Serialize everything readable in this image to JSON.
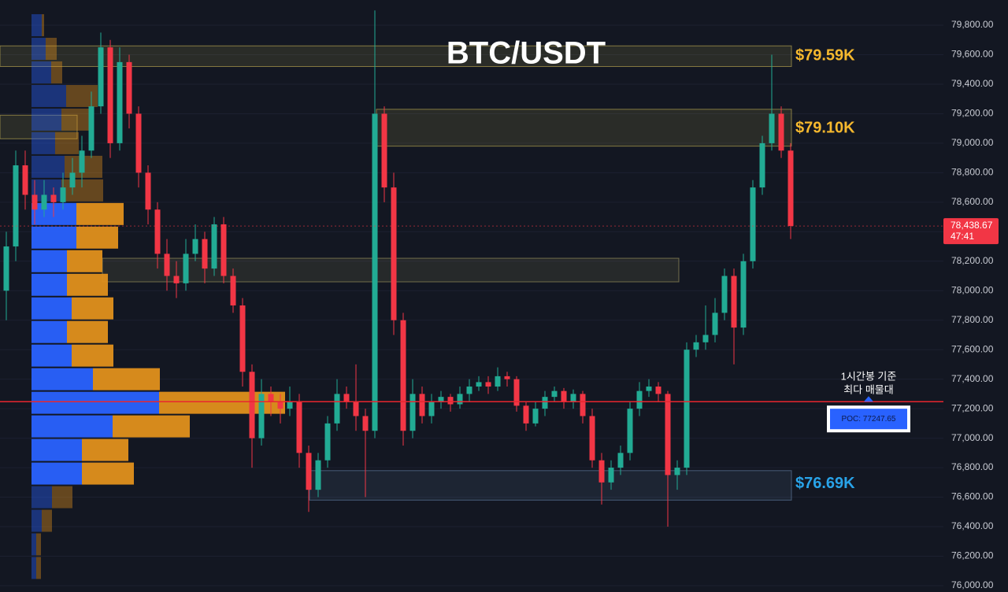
{
  "chart_data": {
    "type": "candlestick",
    "title": "BTC/USDT",
    "up_color": "#22ab94",
    "down_color": "#f23645",
    "ylim": [
      75957,
      79971
    ],
    "yticks": [
      {
        "value": 79800,
        "label": "79,800.00"
      },
      {
        "value": 79600,
        "label": "79,600.00"
      },
      {
        "value": 79400,
        "label": "79,400.00"
      },
      {
        "value": 79200,
        "label": "79,200.00"
      },
      {
        "value": 79000,
        "label": "79,000.00"
      },
      {
        "value": 78800,
        "label": "78,800.00"
      },
      {
        "value": 78600,
        "label": "78,600.00"
      },
      {
        "value": 78400,
        "label": "78,400.00"
      },
      {
        "value": 78200,
        "label": "78,200.00"
      },
      {
        "value": 78000,
        "label": "78,000.00"
      },
      {
        "value": 77800,
        "label": "77,800.00"
      },
      {
        "value": 77600,
        "label": "77,600.00"
      },
      {
        "value": 77400,
        "label": "77,400.00"
      },
      {
        "value": 77200,
        "label": "77,200.00"
      },
      {
        "value": 77000,
        "label": "77,000.00"
      },
      {
        "value": 76800,
        "label": "76,800.00"
      },
      {
        "value": 76600,
        "label": "76,600.00"
      },
      {
        "value": 76400,
        "label": "76,400.00"
      },
      {
        "value": 76200,
        "label": "76,200.00"
      },
      {
        "value": 76000,
        "label": "76,000.00"
      }
    ],
    "grid": true,
    "open": [
      78000,
      78300,
      78850,
      78650,
      78550,
      78650,
      78600,
      78700,
      78800,
      78950,
      79250,
      79650,
      79000,
      79550,
      79200,
      78800,
      78550,
      78250,
      78100,
      78050,
      78250,
      78350,
      78150,
      78450,
      78100,
      77900,
      77450,
      77000,
      77300,
      77250,
      77200,
      77250,
      76900,
      76650,
      76850,
      77100,
      77300,
      77250,
      77150,
      77050,
      79200,
      78700,
      77800,
      77050,
      77300,
      77150,
      77250,
      77280,
      77230,
      77300,
      77350,
      77380,
      77350,
      77420,
      77400,
      77220,
      77100,
      77200,
      77280,
      77320,
      77250,
      77300,
      77150,
      76850,
      76700,
      76800,
      76900,
      77200,
      77320,
      77350,
      77300,
      76750,
      76800,
      77600,
      77650,
      77700,
      77850,
      78100,
      77750,
      78200,
      78700,
      79000,
      79200,
      78950
    ],
    "high": [
      78400,
      78950,
      78950,
      78750,
      78750,
      78700,
      78800,
      78900,
      79050,
      79350,
      79750,
      79700,
      79650,
      79600,
      79250,
      78850,
      78600,
      78350,
      78200,
      78350,
      78450,
      78400,
      78500,
      78500,
      78150,
      77950,
      77500,
      77400,
      77350,
      77300,
      77350,
      77300,
      76950,
      76900,
      77150,
      77400,
      77350,
      77500,
      77200,
      79900,
      79250,
      78800,
      77850,
      77400,
      77350,
      77300,
      77320,
      77300,
      77350,
      77400,
      77420,
      77420,
      77480,
      77450,
      77420,
      77250,
      77250,
      77320,
      77350,
      77340,
      77330,
      77320,
      77200,
      76900,
      76850,
      76950,
      77250,
      77380,
      77400,
      77380,
      77320,
      76850,
      77650,
      77700,
      77900,
      77950,
      78150,
      78150,
      78250,
      78750,
      79050,
      79600,
      79250,
      79000
    ],
    "low": [
      77800,
      78200,
      78550,
      78450,
      78500,
      78500,
      78550,
      78650,
      78700,
      78900,
      79200,
      78900,
      78950,
      79100,
      78700,
      78450,
      78150,
      78000,
      77950,
      78000,
      78200,
      78050,
      78100,
      78050,
      77850,
      77350,
      76800,
      76950,
      77150,
      77100,
      77150,
      76800,
      76500,
      76600,
      76800,
      77050,
      77200,
      77050,
      76600,
      77000,
      78600,
      77700,
      76950,
      77000,
      77100,
      77100,
      77200,
      77180,
      77200,
      77250,
      77320,
      77300,
      77320,
      77350,
      77180,
      77050,
      77080,
      77150,
      77250,
      77200,
      77200,
      77100,
      76800,
      76550,
      76650,
      76750,
      76850,
      77150,
      77280,
      77250,
      76400,
      76650,
      76750,
      77550,
      77600,
      77650,
      77800,
      77500,
      77700,
      78150,
      78650,
      78950,
      78900,
      78350
    ],
    "close": [
      78300,
      78850,
      78650,
      78550,
      78650,
      78600,
      78700,
      78800,
      78950,
      79250,
      79650,
      79000,
      79550,
      79200,
      78800,
      78550,
      78250,
      78100,
      78050,
      78250,
      78350,
      78150,
      78450,
      78100,
      77900,
      77450,
      77000,
      77300,
      77250,
      77200,
      77250,
      76900,
      76650,
      76850,
      77100,
      77300,
      77250,
      77150,
      77050,
      79200,
      78700,
      77800,
      77050,
      77300,
      77150,
      77250,
      77280,
      77230,
      77300,
      77350,
      77380,
      77350,
      77420,
      77400,
      77220,
      77100,
      77200,
      77280,
      77320,
      77250,
      77300,
      77150,
      76850,
      76700,
      76800,
      76900,
      77200,
      77320,
      77350,
      77300,
      76750,
      76800,
      77600,
      77650,
      77700,
      77850,
      78100,
      77750,
      78200,
      78700,
      79000,
      79200,
      78950,
      78438.67
    ],
    "last_price": {
      "value": 78438.67,
      "label": "78,438.67"
    },
    "countdown": "47:41",
    "poc": {
      "value": 77247.65,
      "label": "POC: 77247.65"
    },
    "poc_note": [
      "1시간봉 기준",
      "최다 매물대"
    ],
    "zones": [
      {
        "range": [
          79520,
          79660
        ],
        "level": 79590,
        "label": "$79.59K",
        "color": "#d8c35a",
        "label_color": "#f5b82e"
      },
      {
        "range": [
          78980,
          79230
        ],
        "level": 79100,
        "label": "$79.10K",
        "color": "#d8c35a",
        "label_color": "#f5b82e"
      },
      {
        "range": [
          78060,
          78220
        ],
        "color": "#b8ad6a"
      },
      {
        "range": [
          76580,
          76780
        ],
        "level": 76690,
        "label": "$76.69K",
        "color": "#6f8fb8",
        "label_color": "#29a3e8"
      },
      {
        "range": [
          79030,
          79190
        ],
        "color": "#d8c35a"
      }
    ],
    "profile": {
      "prices": [
        79800,
        79640,
        79480,
        79320,
        79160,
        79000,
        78840,
        78680,
        78520,
        78360,
        78200,
        78040,
        77880,
        77720,
        77560,
        77400,
        77240,
        77080,
        76920,
        76760,
        76600,
        76440,
        76280,
        76120
      ],
      "buy": [
        13,
        18,
        25,
        44,
        38,
        30,
        42,
        38,
        57,
        57,
        45,
        45,
        51,
        45,
        51,
        78,
        162,
        103,
        64,
        64,
        26,
        13,
        6,
        6
      ],
      "sell": [
        3,
        14,
        14,
        40,
        40,
        30,
        48,
        53,
        60,
        53,
        45,
        52,
        53,
        52,
        53,
        85,
        160,
        98,
        59,
        66,
        26,
        13,
        6,
        6
      ],
      "buy_color": "#2962ff",
      "sell_color": "#e0901c"
    }
  }
}
